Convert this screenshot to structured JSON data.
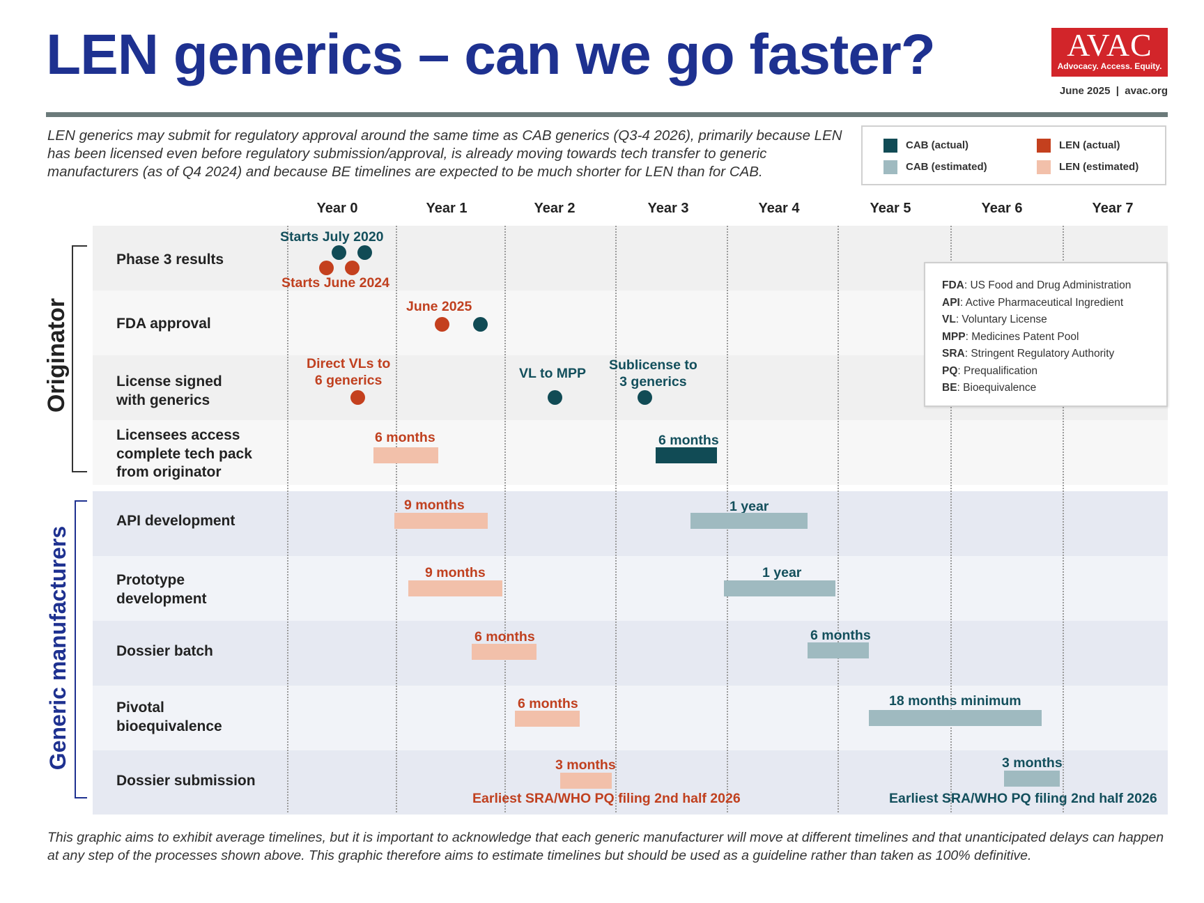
{
  "header": {
    "title": "LEN generics – can we go faster?",
    "logo_text": "AVAC",
    "logo_tagline": "Advocacy. Access. Equity.",
    "date": "June 2025",
    "site": "avac.org"
  },
  "intro": "LEN generics may submit for regulatory approval around the same time as CAB generics (Q3-4 2026), primarily because LEN has been licensed even before regulatory submission/approval, is already moving towards tech transfer to generic manufacturers (as of Q4 2024) and because BE timelines are expected to be much shorter for LEN than for CAB.",
  "legend": [
    {
      "label": "CAB (actual)",
      "color": "#114b55"
    },
    {
      "label": "LEN (actual)",
      "color": "#c4401e"
    },
    {
      "label": "CAB (estimated)",
      "color": "#9fbac0"
    },
    {
      "label": "LEN (estimated)",
      "color": "#f2c0aa"
    }
  ],
  "years": [
    "Year 0",
    "Year 1",
    "Year 2",
    "Year 3",
    "Year 4",
    "Year 5",
    "Year 6",
    "Year 7"
  ],
  "groups": {
    "originator": "Originator",
    "generic": "Generic manufacturers"
  },
  "rows": [
    {
      "label": "Phase 3 results"
    },
    {
      "label": "FDA approval"
    },
    {
      "label": "License signed\nwith generics"
    },
    {
      "label": "Licensees access\ncomplete tech pack\nfrom originator"
    },
    {
      "label": "API development"
    },
    {
      "label": "Prototype\ndevelopment"
    },
    {
      "label": "Dossier batch"
    },
    {
      "label": "Pivotal\nbioequivalence"
    },
    {
      "label": "Dossier submission"
    }
  ],
  "annotations": {
    "phase3_cab": "Starts July 2020",
    "phase3_len": "Starts June 2024",
    "fda_len": "June 2025",
    "license_len": "Direct VLs to\n6 generics",
    "license_cab_mpp": "VL to MPP",
    "license_cab_sub": "Sublicense to\n3 generics",
    "techpack_len": "6 months",
    "techpack_cab": "6 months",
    "api_len": "9 months",
    "api_cab": "1 year",
    "proto_len": "9 months",
    "proto_cab": "1 year",
    "batch_len": "6 months",
    "batch_cab": "6 months",
    "be_len": "6 months",
    "be_cab": "18 months minimum",
    "sub_len": "3 months",
    "sub_cab": "3 months",
    "filing_len": "Earliest SRA/WHO PQ filing 2nd half 2026",
    "filing_cab": "Earliest SRA/WHO PQ filing 2nd half 2026"
  },
  "abbreviations": [
    {
      "abbr": "FDA",
      "def": ": US Food and Drug Administration"
    },
    {
      "abbr": "API",
      "def": ": Active Pharmaceutical Ingredient"
    },
    {
      "abbr": "VL",
      "def": ": Voluntary License"
    },
    {
      "abbr": "MPP",
      "def": ": Medicines Patent Pool"
    },
    {
      "abbr": "SRA",
      "def": ": Stringent Regulatory Authority"
    },
    {
      "abbr": "PQ",
      "def": ": Prequalification"
    },
    {
      "abbr": "BE",
      "def": ": Bioequivalence"
    }
  ],
  "footer": "This graphic aims to exhibit average timelines, but it is important to acknowledge that each generic manufacturer will move at different timelines and that unanticipated delays can happen at any step of the processes shown above. This graphic therefore aims to estimate timelines but should be used as a guideline rather than taken as 100% definitive."
}
